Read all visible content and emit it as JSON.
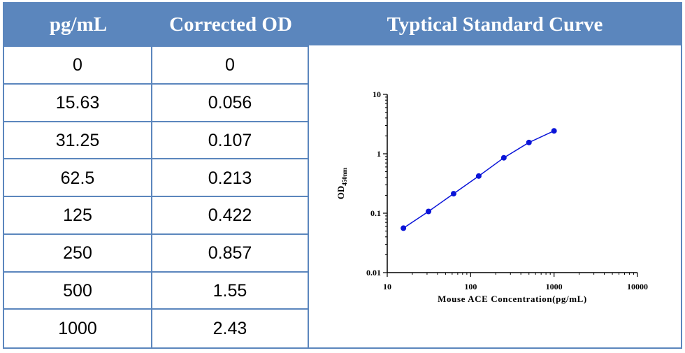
{
  "table": {
    "headers": [
      "pg/mL",
      "Corrected OD",
      "Typtical Standard Curve"
    ],
    "rows": [
      [
        "0",
        "0"
      ],
      [
        "15.63",
        "0.056"
      ],
      [
        "31.25",
        "0.107"
      ],
      [
        "62.5",
        "0.213"
      ],
      [
        "125",
        "0.422"
      ],
      [
        "250",
        "0.857"
      ],
      [
        "500",
        "1.55"
      ],
      [
        "1000",
        "2.43"
      ]
    ]
  },
  "colors": {
    "header_bg": "#5b86bd",
    "series": "#0a14d8"
  },
  "chart_data": {
    "type": "line",
    "title": "Typtical Standard Curve",
    "xlabel": "Mouse ACE Concentration(pg/mL)",
    "ylabel": "OD",
    "ylabel_sub": "450nm",
    "xscale": "log",
    "yscale": "log",
    "xlim": [
      10,
      10000
    ],
    "ylim": [
      0.01,
      10
    ],
    "xticks": [
      "10",
      "100",
      "1000",
      "10000"
    ],
    "yticks": [
      "0.01",
      "0.1",
      "1",
      "10"
    ],
    "grid": false,
    "series": [
      {
        "x": [
          15.63,
          31.25,
          62.5,
          125,
          250,
          500,
          1000
        ],
        "y": [
          0.056,
          0.107,
          0.213,
          0.422,
          0.857,
          1.55,
          2.43
        ]
      }
    ]
  }
}
